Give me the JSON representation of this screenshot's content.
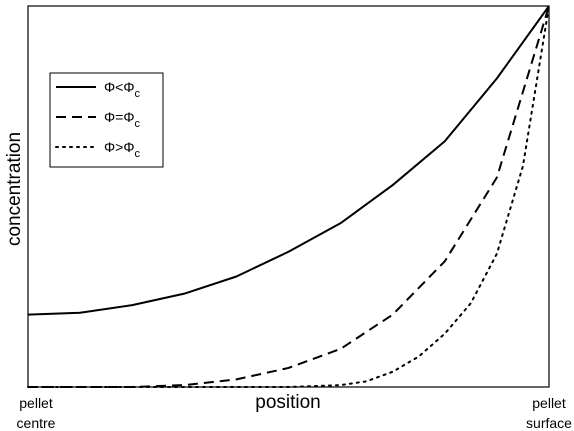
{
  "chart_data": {
    "type": "line",
    "xlabel": "position",
    "ylabel": "concentration",
    "x_tick_labels": [
      {
        "x": 0,
        "lines": [
          "pellet",
          "centre"
        ]
      },
      {
        "x": 1,
        "lines": [
          "pellet",
          "surface"
        ]
      }
    ],
    "xlim": [
      0,
      1
    ],
    "ylim": [
      0,
      1
    ],
    "grid": false,
    "legend_placement": "top-left",
    "series": [
      {
        "name": "Φ<Φc",
        "legend_symbol": "Φ",
        "legend_op": "<",
        "legend_sub": "c",
        "style": "solid",
        "x": [
          0,
          0.1,
          0.2,
          0.3,
          0.4,
          0.5,
          0.6,
          0.7,
          0.8,
          0.9,
          1.0
        ],
        "y": [
          0.19,
          0.195,
          0.215,
          0.245,
          0.29,
          0.355,
          0.43,
          0.53,
          0.645,
          0.81,
          1.0
        ]
      },
      {
        "name": "Φ=Φc",
        "legend_symbol": "Φ",
        "legend_op": "=",
        "legend_sub": "c",
        "style": "dashed",
        "x": [
          0,
          0.1,
          0.2,
          0.3,
          0.4,
          0.5,
          0.6,
          0.7,
          0.8,
          0.9,
          1.0
        ],
        "y": [
          0.0,
          0.0,
          0.0,
          0.005,
          0.02,
          0.05,
          0.1,
          0.19,
          0.33,
          0.55,
          1.0
        ]
      },
      {
        "name": "Φ>Φc",
        "legend_symbol": "Φ",
        "legend_op": ">",
        "legend_sub": "c",
        "style": "dotted",
        "x": [
          0,
          0.1,
          0.2,
          0.3,
          0.4,
          0.5,
          0.6,
          0.65,
          0.7,
          0.75,
          0.8,
          0.85,
          0.9,
          0.95,
          1.0
        ],
        "y": [
          0.0,
          0.0,
          0.0,
          0.0,
          0.0,
          0.0,
          0.005,
          0.015,
          0.04,
          0.08,
          0.14,
          0.22,
          0.35,
          0.58,
          1.0
        ]
      }
    ]
  }
}
